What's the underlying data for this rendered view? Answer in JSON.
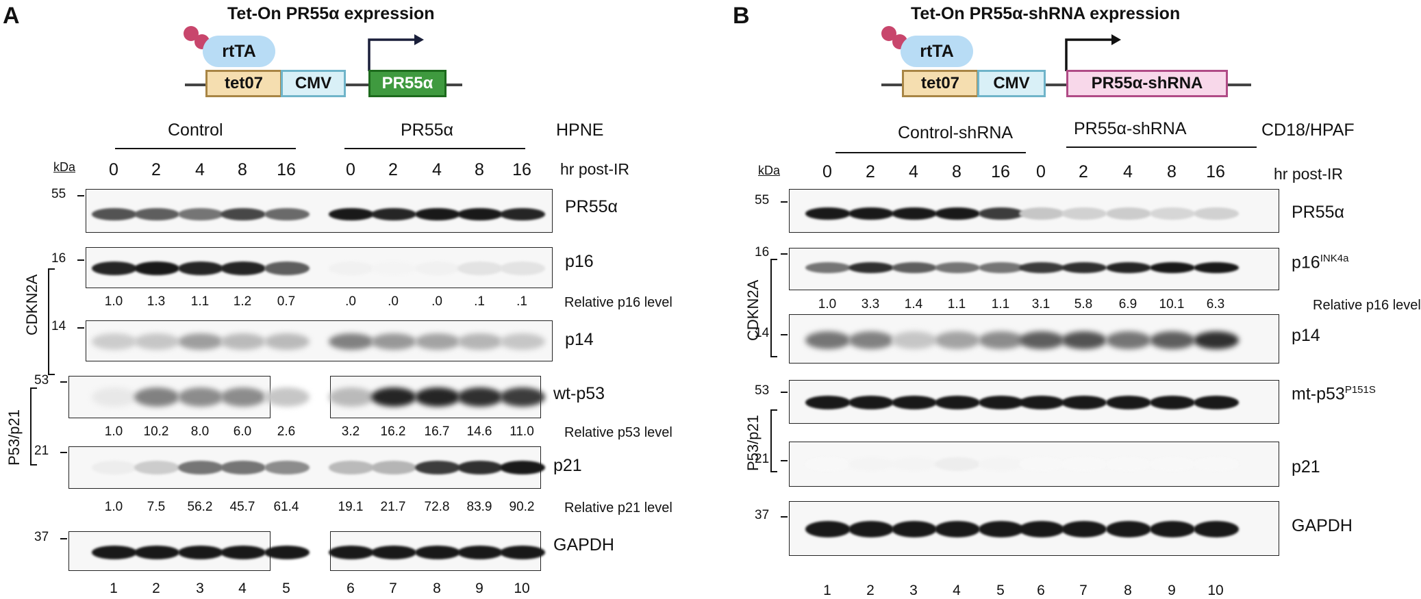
{
  "panelA": {
    "letter": "A",
    "title": "Tet-On PR55α expression",
    "construct": {
      "rtta": "rtTA",
      "tet": "tet07",
      "cmv": "CMV",
      "gene": "PR55α"
    },
    "groups": [
      "Control",
      "PR55α"
    ],
    "cell_line": "HPNE",
    "kda_label": "kDa",
    "timepoints": [
      "0",
      "2",
      "4",
      "8",
      "16",
      "0",
      "2",
      "4",
      "8",
      "16"
    ],
    "time_label": "hr post-IR",
    "lane_numbers": [
      "1",
      "2",
      "3",
      "4",
      "5",
      "6",
      "7",
      "8",
      "9",
      "10"
    ],
    "bracket_labels": [
      "CDKN2A",
      "P53/p21"
    ],
    "blots": [
      {
        "name": "PR55α",
        "sup": "",
        "mw": "55"
      },
      {
        "name": "p16",
        "sup": "",
        "mw": "16"
      },
      {
        "name": "p14",
        "sup": "",
        "mw": "14"
      },
      {
        "name": "wt-p53",
        "sup": "",
        "mw": "53"
      },
      {
        "name": "p21",
        "sup": "",
        "mw": "21"
      },
      {
        "name": "GAPDH",
        "sup": "",
        "mw": "37"
      }
    ],
    "quant": [
      {
        "label": "Relative p16 level",
        "values": [
          "1.0",
          "1.3",
          "1.1",
          "1.2",
          "0.7",
          ".0",
          ".0",
          ".0",
          ".1",
          ".1"
        ]
      },
      {
        "label": "Relative p53 level",
        "values": [
          "1.0",
          "10.2",
          "8.0",
          "6.0",
          "2.6",
          "3.2",
          "16.2",
          "16.7",
          "14.6",
          "11.0"
        ]
      },
      {
        "label": "Relative p21 level",
        "values": [
          "1.0",
          "7.5",
          "56.2",
          "45.7",
          "61.4",
          "19.1",
          "21.7",
          "72.8",
          "83.9",
          "90.2"
        ]
      }
    ]
  },
  "panelB": {
    "letter": "B",
    "title": "Tet-On PR55α-shRNA expression",
    "construct": {
      "rtta": "rtTA",
      "tet": "tet07",
      "cmv": "CMV",
      "gene": "PR55α-shRNA"
    },
    "groups": [
      "Control-shRNA",
      "PR55α-shRNA"
    ],
    "cell_line": "CD18/HPAF",
    "kda_label": "kDa",
    "timepoints": [
      "0",
      "2",
      "4",
      "8",
      "16",
      "0",
      "2",
      "4",
      "8",
      "16"
    ],
    "time_label": "hr post-IR",
    "lane_numbers": [
      "1",
      "2",
      "3",
      "4",
      "5",
      "6",
      "7",
      "8",
      "9",
      "10"
    ],
    "bracket_labels": [
      "CDKN2A",
      "P53/p21"
    ],
    "blots": [
      {
        "name": "PR55α",
        "sup": "",
        "mw": "55"
      },
      {
        "name": "p16",
        "sup": "INK4a",
        "mw": "16"
      },
      {
        "name": "p14",
        "sup": "",
        "mw": "14"
      },
      {
        "name": "mt-p53",
        "sup": "P151S",
        "mw": "53"
      },
      {
        "name": "p21",
        "sup": "",
        "mw": "21"
      },
      {
        "name": "GAPDH",
        "sup": "",
        "mw": "37"
      }
    ],
    "quant": [
      {
        "label": "Relative p16 level",
        "values": [
          "1.0",
          "3.3",
          "1.4",
          "1.1",
          "1.1",
          "3.1",
          "5.8",
          "6.9",
          "10.1",
          "6.3"
        ]
      }
    ]
  }
}
